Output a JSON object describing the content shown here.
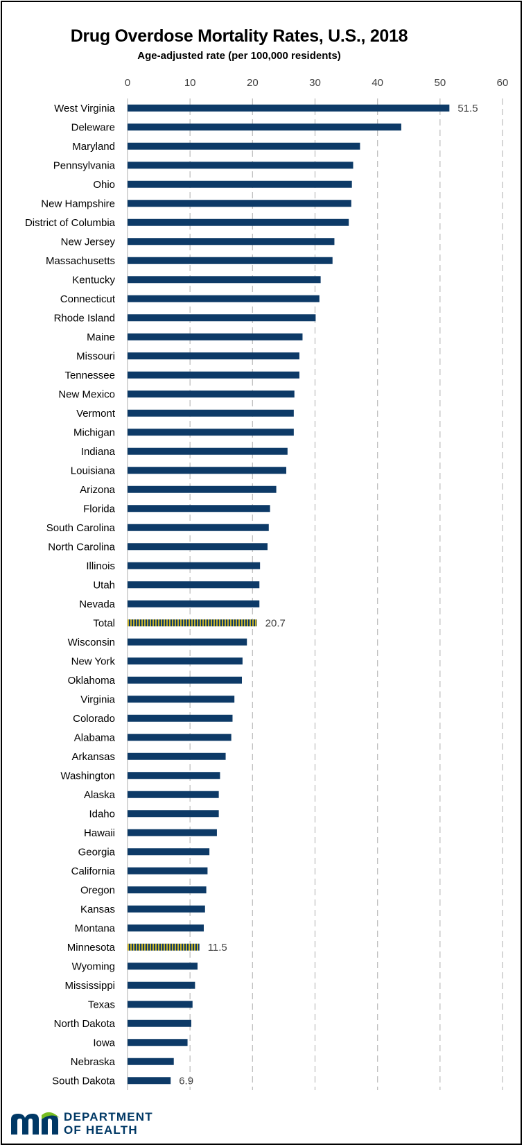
{
  "chart_data": {
    "type": "bar",
    "orientation": "horizontal",
    "title": "Drug Overdose Mortality Rates, U.S., 2018",
    "subtitle": "Age-adjusted rate (per 100,000 residents)",
    "xlim": [
      0,
      60
    ],
    "ticks": [
      0,
      10,
      20,
      30,
      40,
      50,
      60
    ],
    "grid": "vertical dashed",
    "colors": {
      "bar": "#0d3a67",
      "highlight_dark": "#0d3a67",
      "highlight_stripe": "#c8b22a",
      "grid": "#bfbfbf"
    },
    "categories": [
      "West Virginia",
      "Deleware",
      "Maryland",
      "Pennsylvania",
      "Ohio",
      "New Hampshire",
      "District of Columbia",
      "New Jersey",
      "Massachusetts",
      "Kentucky",
      "Connecticut",
      "Rhode Island",
      "Maine",
      "Missouri",
      "Tennessee",
      "New Mexico",
      "Vermont",
      "Michigan",
      "Indiana",
      "Louisiana",
      "Arizona",
      "Florida",
      "South Carolina",
      "North Carolina",
      "Illinois",
      "Utah",
      "Nevada",
      "Total",
      "Wisconsin",
      "New York",
      "Oklahoma",
      "Virginia",
      "Colorado",
      "Alabama",
      "Arkansas",
      "Washington",
      "Alaska",
      "Idaho",
      "Hawaii",
      "Georgia",
      "California",
      "Oregon",
      "Kansas",
      "Montana",
      "Minnesota",
      "Wyoming",
      "Mississippi",
      "Texas",
      "North Dakota",
      "Iowa",
      "Nebraska",
      "South Dakota"
    ],
    "values": [
      51.5,
      43.8,
      37.2,
      36.1,
      35.9,
      35.8,
      35.4,
      33.1,
      32.8,
      30.9,
      30.7,
      30.1,
      28.0,
      27.5,
      27.5,
      26.7,
      26.6,
      26.6,
      25.6,
      25.4,
      23.8,
      22.8,
      22.6,
      22.4,
      21.2,
      21.1,
      21.1,
      20.7,
      19.1,
      18.4,
      18.3,
      17.1,
      16.8,
      16.6,
      15.7,
      14.8,
      14.6,
      14.6,
      14.3,
      13.1,
      12.8,
      12.6,
      12.4,
      12.2,
      11.5,
      11.2,
      10.8,
      10.4,
      10.2,
      9.6,
      7.4,
      6.9
    ],
    "highlighted": [
      "Total",
      "Minnesota"
    ],
    "data_labels": [
      {
        "category": "West Virginia",
        "text": "51.5"
      },
      {
        "category": "Total",
        "text": "20.7"
      },
      {
        "category": "Minnesota",
        "text": "11.5"
      },
      {
        "category": "South Dakota",
        "text": "6.9"
      }
    ]
  },
  "logo": {
    "line1": "DEPARTMENT",
    "line2": "OF HEALTH",
    "color": "#003865",
    "accent": "#78be21"
  }
}
